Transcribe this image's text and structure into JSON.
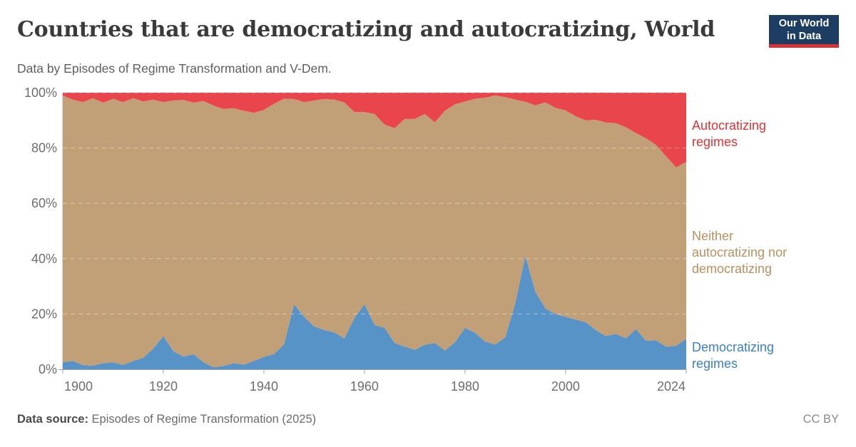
{
  "header": {
    "title": "Countries that are democratizing and autocratizing, World",
    "subtitle": "Data by Episodes of Regime Transformation and V-Dem."
  },
  "logo": {
    "line1": "Our World",
    "line2": "in Data",
    "bg_color": "#1d3d63",
    "strip_color": "#dc2f36"
  },
  "footer": {
    "source_label": "Data source:",
    "source_text": " Episodes of Regime Transformation (2025)",
    "license": "CC BY"
  },
  "chart_data": {
    "type": "area",
    "stacked": true,
    "unit": "%",
    "title": "Countries that are democratizing and autocratizing, World",
    "xlabel": "",
    "ylabel": "",
    "xlim": [
      1900,
      2024
    ],
    "ylim": [
      0,
      100
    ],
    "grid": "horizontal-dashed",
    "legend_position": "right-margin",
    "x_tick_labels": [
      "1900",
      "1920",
      "1940",
      "1960",
      "1980",
      "2000",
      "2024"
    ],
    "x_tick_years": [
      1900,
      1920,
      1940,
      1960,
      1980,
      2000,
      2024
    ],
    "y_tick_labels": [
      "0%",
      "20%",
      "40%",
      "60%",
      "80%",
      "100%"
    ],
    "y_tick_values": [
      0,
      20,
      40,
      60,
      80,
      100
    ],
    "years": [
      1900,
      1902,
      1904,
      1906,
      1908,
      1910,
      1912,
      1914,
      1916,
      1918,
      1920,
      1922,
      1924,
      1926,
      1928,
      1930,
      1932,
      1934,
      1936,
      1938,
      1940,
      1942,
      1944,
      1946,
      1948,
      1950,
      1952,
      1954,
      1956,
      1958,
      1960,
      1962,
      1964,
      1966,
      1968,
      1970,
      1972,
      1974,
      1976,
      1978,
      1980,
      1982,
      1984,
      1986,
      1988,
      1990,
      1992,
      1994,
      1996,
      1998,
      2000,
      2002,
      2004,
      2006,
      2008,
      2010,
      2012,
      2014,
      2016,
      2018,
      2020,
      2022,
      2024
    ],
    "series": [
      {
        "name": "Democratizing regimes",
        "color": "#5893c8",
        "label_color": "#3b7fc4",
        "values": [
          2.5,
          3,
          1.5,
          1.3,
          2.2,
          2.5,
          1.6,
          3,
          4.2,
          7.5,
          12,
          6.5,
          4.6,
          5.5,
          2.5,
          0.7,
          1.2,
          2.2,
          1.7,
          3,
          4.5,
          5.5,
          9,
          23.5,
          19,
          15.5,
          14.2,
          13.3,
          11.2,
          18.5,
          23.5,
          16,
          15,
          9.5,
          8.2,
          7,
          8.9,
          9.5,
          6.8,
          9.8,
          15,
          13.2,
          10,
          9,
          11.5,
          24,
          41,
          28,
          22,
          20,
          19,
          18,
          17,
          14.2,
          12,
          12.8,
          11.2,
          14.5,
          10.3,
          10.5,
          8.2,
          8.5,
          11
        ]
      },
      {
        "name": "Neither autocratizing nor democratizing",
        "color": "#c2a077",
        "label_color": "#b9905f",
        "values": "remainder-to-100"
      },
      {
        "name": "Autocratizing regimes",
        "color": "#e8454d",
        "label_color": "#de3335",
        "values": [
          1,
          2.5,
          3.4,
          2,
          3.6,
          2.2,
          3.4,
          2,
          3.2,
          2.5,
          3.4,
          2.8,
          2.6,
          3.6,
          3,
          4.7,
          5.9,
          5.6,
          6.5,
          7.3,
          6.2,
          4,
          2.2,
          2.3,
          3.4,
          2.8,
          2.3,
          2.5,
          3.5,
          7,
          7,
          7.7,
          11.5,
          12.8,
          9.5,
          9.5,
          7.7,
          10.7,
          6.5,
          4.2,
          3.2,
          2.2,
          1.8,
          1,
          1.6,
          2.5,
          3.3,
          4.6,
          3.5,
          5.5,
          6.4,
          8.5,
          10,
          9.8,
          10.8,
          11,
          12.5,
          14.6,
          16.5,
          18.9,
          23,
          27,
          25
        ]
      }
    ]
  }
}
